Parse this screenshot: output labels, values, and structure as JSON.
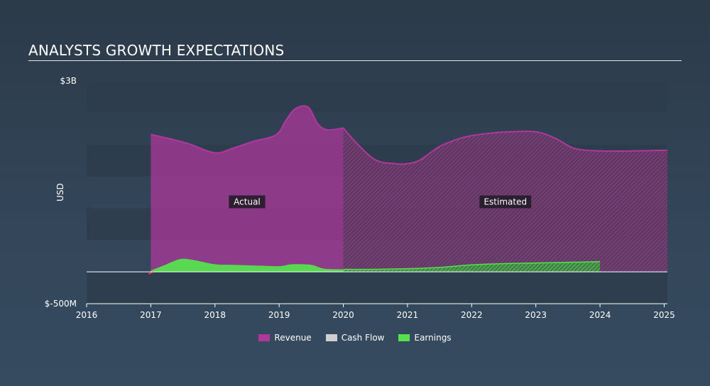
{
  "header": {
    "title": "ANALYSTS GROWTH EXPECTATIONS"
  },
  "colors": {
    "revenue": "#b0389c",
    "cash_flow": "#cfcfcf",
    "earnings": "#56e04e",
    "plot_band": "#2e3d4c"
  },
  "chart_data": {
    "type": "area",
    "title": "ANALYSTS GROWTH EXPECTATIONS",
    "xlabel": "",
    "ylabel": "USD",
    "xlim": [
      2016,
      2025.05
    ],
    "ylim": [
      -500000000,
      3000000000
    ],
    "x_ticks": [
      2016,
      2017,
      2018,
      2019,
      2020,
      2021,
      2022,
      2023,
      2024,
      2025
    ],
    "x_tick_labels": [
      "2016",
      "2017",
      "2018",
      "2019",
      "2020",
      "2021",
      "2022",
      "2023",
      "2024",
      "2025"
    ],
    "y_tick_labels": [
      {
        "value": 3000000000,
        "label": "$3B"
      },
      {
        "value": -500000000,
        "label": "$-500M"
      }
    ],
    "actual_estimated_split": 2020,
    "annotations": [
      {
        "text": "Actual",
        "x": 2017.5,
        "y": 1100000000
      },
      {
        "text": "Estimated",
        "x": 2021.3,
        "y": 1100000000
      }
    ],
    "legend_position": "bottom-center",
    "series": [
      {
        "name": "Revenue",
        "x": [
          2017.0,
          2017.3,
          2017.6,
          2018.0,
          2018.3,
          2018.6,
          2018.95,
          2019.1,
          2019.25,
          2019.45,
          2019.6,
          2019.75,
          2020.0,
          2020.2,
          2020.5,
          2020.8,
          2021.0,
          2021.2,
          2021.5,
          2021.8,
          2022.0,
          2022.3,
          2022.6,
          2023.0,
          2023.3,
          2023.6,
          2024.0,
          2024.5,
          2025.05
        ],
        "y": [
          2160000000,
          2090000000,
          2010000000,
          1870000000,
          1950000000,
          2050000000,
          2150000000,
          2370000000,
          2560000000,
          2590000000,
          2330000000,
          2230000000,
          2260000000,
          2030000000,
          1760000000,
          1700000000,
          1700000000,
          1760000000,
          1970000000,
          2090000000,
          2140000000,
          2180000000,
          2200000000,
          2200000000,
          2100000000,
          1940000000,
          1900000000,
          1900000000,
          1910000000
        ]
      },
      {
        "name": "Cash Flow",
        "x": [
          2020.0,
          2020.5,
          2021.0,
          2021.5,
          2022.0
        ],
        "y": [
          30000000,
          30000000,
          40000000,
          40000000,
          40000000
        ]
      },
      {
        "name": "Earnings",
        "x": [
          2017.0,
          2017.2,
          2017.45,
          2017.65,
          2018.0,
          2018.3,
          2018.6,
          2019.0,
          2019.2,
          2019.5,
          2019.7,
          2020.0,
          2020.5,
          2021.0,
          2021.5,
          2022.0,
          2022.5,
          2023.0,
          2023.5,
          2024.0
        ],
        "y": [
          20000000,
          100000000,
          200000000,
          190000000,
          120000000,
          110000000,
          100000000,
          90000000,
          120000000,
          110000000,
          50000000,
          40000000,
          40000000,
          50000000,
          70000000,
          110000000,
          130000000,
          140000000,
          150000000,
          160000000
        ]
      }
    ]
  }
}
